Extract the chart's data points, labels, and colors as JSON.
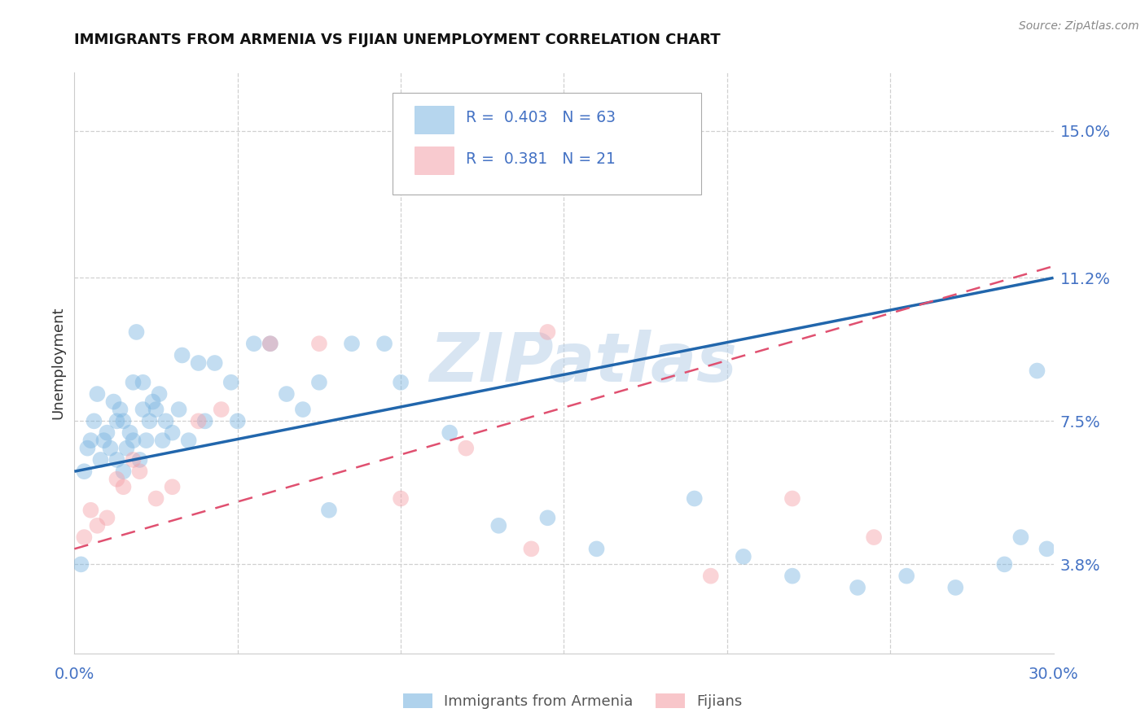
{
  "title": "IMMIGRANTS FROM ARMENIA VS FIJIAN UNEMPLOYMENT CORRELATION CHART",
  "source": "Source: ZipAtlas.com",
  "ylabel": "Unemployment",
  "yticks": [
    3.8,
    7.5,
    11.2,
    15.0
  ],
  "ytick_labels": [
    "3.8%",
    "7.5%",
    "11.2%",
    "15.0%"
  ],
  "xmin": 0.0,
  "xmax": 30.0,
  "ymin": 1.5,
  "ymax": 16.5,
  "blue_color": "#7ab5e0",
  "pink_color": "#f4a0a8",
  "line_blue": "#2166ac",
  "line_pink": "#e05070",
  "watermark": "ZIPatlas",
  "watermark_color": "#b8d0e8",
  "blue_points_x": [
    0.2,
    0.3,
    0.4,
    0.5,
    0.6,
    0.7,
    0.8,
    0.9,
    1.0,
    1.1,
    1.2,
    1.3,
    1.3,
    1.4,
    1.5,
    1.5,
    1.6,
    1.7,
    1.8,
    1.8,
    1.9,
    2.0,
    2.1,
    2.1,
    2.2,
    2.3,
    2.4,
    2.5,
    2.6,
    2.7,
    2.8,
    3.0,
    3.2,
    3.3,
    3.5,
    3.8,
    4.0,
    4.3,
    4.8,
    5.0,
    5.5,
    6.0,
    6.5,
    7.0,
    7.5,
    8.5,
    9.5,
    10.0,
    11.5,
    13.0,
    14.5,
    16.0,
    19.0,
    20.5,
    22.0,
    24.0,
    25.5,
    27.0,
    28.5,
    29.0,
    29.5,
    29.8,
    7.8
  ],
  "blue_points_y": [
    3.8,
    6.2,
    6.8,
    7.0,
    7.5,
    8.2,
    6.5,
    7.0,
    7.2,
    6.8,
    8.0,
    7.5,
    6.5,
    7.8,
    6.2,
    7.5,
    6.8,
    7.2,
    7.0,
    8.5,
    9.8,
    6.5,
    7.8,
    8.5,
    7.0,
    7.5,
    8.0,
    7.8,
    8.2,
    7.0,
    7.5,
    7.2,
    7.8,
    9.2,
    7.0,
    9.0,
    7.5,
    9.0,
    8.5,
    7.5,
    9.5,
    9.5,
    8.2,
    7.8,
    8.5,
    9.5,
    9.5,
    8.5,
    7.2,
    4.8,
    5.0,
    4.2,
    5.5,
    4.0,
    3.5,
    3.2,
    3.5,
    3.2,
    3.8,
    4.5,
    8.8,
    4.2,
    5.2
  ],
  "pink_points_x": [
    0.3,
    0.5,
    0.7,
    1.0,
    1.3,
    1.5,
    1.8,
    2.0,
    2.5,
    3.0,
    3.8,
    4.5,
    6.0,
    7.5,
    10.0,
    12.0,
    14.0,
    14.5,
    19.5,
    22.0,
    24.5
  ],
  "pink_points_y": [
    4.5,
    5.2,
    4.8,
    5.0,
    6.0,
    5.8,
    6.5,
    6.2,
    5.5,
    5.8,
    7.5,
    7.8,
    9.5,
    9.5,
    5.5,
    6.8,
    4.2,
    9.8,
    3.5,
    5.5,
    4.5
  ],
  "blue_line_x0": 0.0,
  "blue_line_x1": 30.0,
  "blue_line_y0": 6.2,
  "blue_line_y1": 11.2,
  "pink_line_x0": 0.0,
  "pink_line_x1": 30.0,
  "pink_line_y0": 4.2,
  "pink_line_y1": 11.5,
  "grid_color": "#d0d0d0",
  "spine_color": "#cccccc",
  "tick_color": "#4472c4",
  "ylabel_color": "#333333",
  "title_color": "#111111",
  "source_color": "#888888"
}
